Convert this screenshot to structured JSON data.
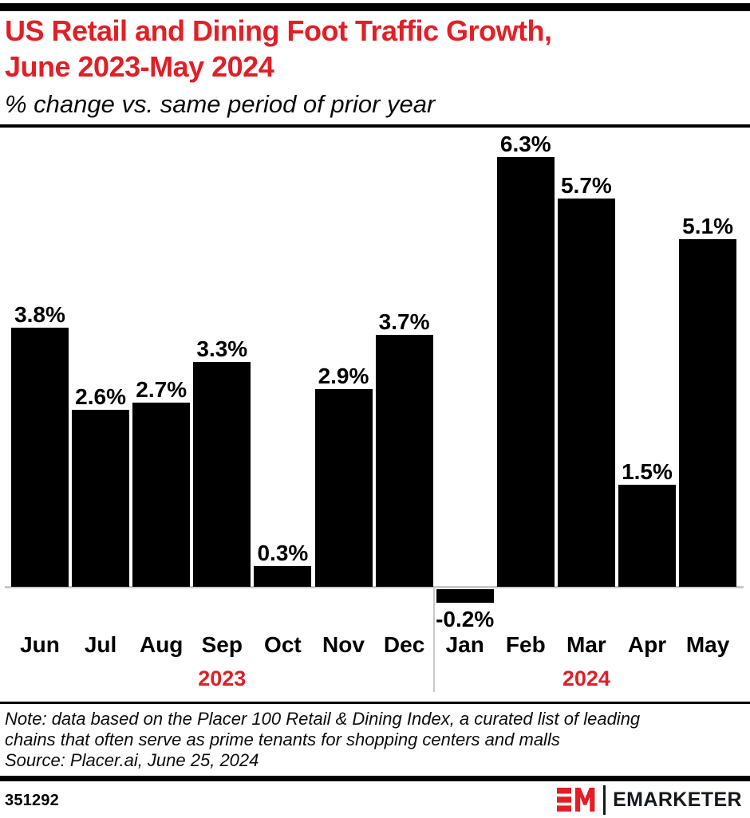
{
  "page": {
    "title_line1": "US Retail and Dining Foot Traffic Growth,",
    "title_line2": "June 2023-May 2024",
    "subtitle": "% change vs. same period of prior year"
  },
  "chart_data": {
    "type": "bar",
    "categories": [
      "Jun",
      "Jul",
      "Aug",
      "Sep",
      "Oct",
      "Nov",
      "Dec",
      "Jan",
      "Feb",
      "Mar",
      "Apr",
      "May"
    ],
    "values": [
      3.8,
      2.6,
      2.7,
      3.3,
      0.3,
      2.9,
      3.7,
      -0.2,
      6.3,
      5.7,
      1.5,
      5.1
    ],
    "labels": [
      "3.8%",
      "2.6%",
      "2.7%",
      "3.3%",
      "0.3%",
      "2.9%",
      "3.7%",
      "-0.2%",
      "6.3%",
      "5.7%",
      "1.5%",
      "5.1%"
    ],
    "title": "US Retail and Dining Foot Traffic Growth, June 2023-May 2024",
    "xlabel": "",
    "ylabel": "% change vs. same period of prior year",
    "ylim": [
      -0.5,
      6.6
    ],
    "grid": false,
    "legend": "none",
    "bar_color": "#000000",
    "year_markers": [
      {
        "label": "2023",
        "slot_index": 3
      },
      {
        "label": "2024",
        "slot_index": 9
      }
    ],
    "divider_after_index": 6
  },
  "note": {
    "line1": "Note: data based on the Placer 100 Retail & Dining Index, a curated list of leading",
    "line2": "chains that often serve as prime tenants for shopping centers and malls",
    "line3": "Source: Placer.ai, June 25, 2024"
  },
  "footer": {
    "chart_id": "351292",
    "brand": "EMARKETER"
  },
  "colors": {
    "accent_red": "#e31e25",
    "axis_gray": "#c9c9c9",
    "bar_black": "#000000"
  }
}
